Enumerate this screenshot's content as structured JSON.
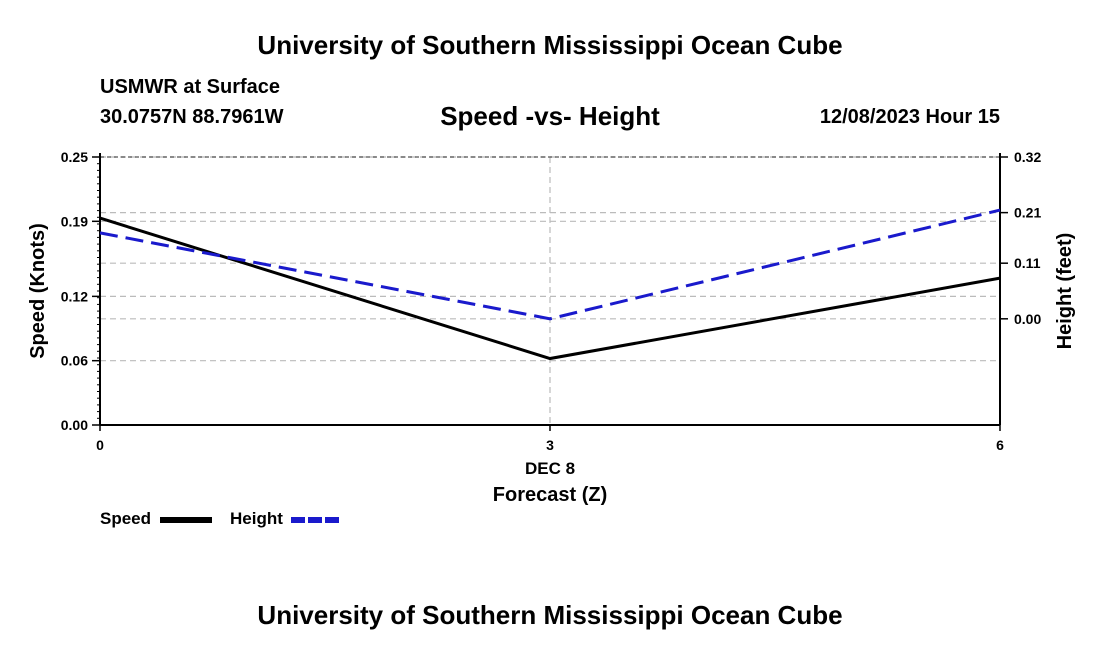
{
  "header": {
    "title": "University of Southern Mississippi Ocean Cube",
    "station": "USMWR at Surface",
    "coords": "30.0757N  88.7961W",
    "datetime": "12/08/2023 Hour 15"
  },
  "footer": {
    "title": "University of Southern Mississippi Ocean Cube"
  },
  "chart_data": {
    "type": "line",
    "title": "Speed -vs- Height",
    "xlabel": "Forecast (Z)",
    "ylabel": "Speed (Knots)",
    "y2label": "Height (feet)",
    "x_ticks": [
      0,
      3,
      6
    ],
    "x_tick_labels": [
      "0",
      "3",
      "6"
    ],
    "x_date_label": "DEC 8",
    "xlim": [
      0,
      6
    ],
    "ylim": [
      0.0,
      0.25
    ],
    "y_ticks": [
      0.0,
      0.06,
      0.12,
      0.19,
      0.25
    ],
    "y_tick_labels": [
      "0.00",
      "0.06",
      "0.12",
      "0.19",
      "0.25"
    ],
    "y2lim": [
      -0.21,
      0.32
    ],
    "y2_ticks": [
      0.0,
      0.11,
      0.21,
      0.32
    ],
    "y2_tick_labels": [
      "0.00",
      "0.11",
      "0.21",
      "0.32"
    ],
    "grid": true,
    "series": [
      {
        "name": "Speed",
        "axis": "left",
        "color": "#000000",
        "dash": "solid",
        "x": [
          0,
          3,
          6
        ],
        "values": [
          0.193,
          0.062,
          0.137
        ]
      },
      {
        "name": "Height",
        "axis": "right",
        "color": "#1a1acc",
        "dash": "dashed",
        "x": [
          0,
          3,
          6
        ],
        "values": [
          0.17,
          0.0,
          0.215
        ]
      }
    ],
    "legend": [
      {
        "label": "Speed",
        "color": "#000000",
        "dash": "solid"
      },
      {
        "label": "Height",
        "color": "#1a1acc",
        "dash": "dashed"
      }
    ]
  }
}
